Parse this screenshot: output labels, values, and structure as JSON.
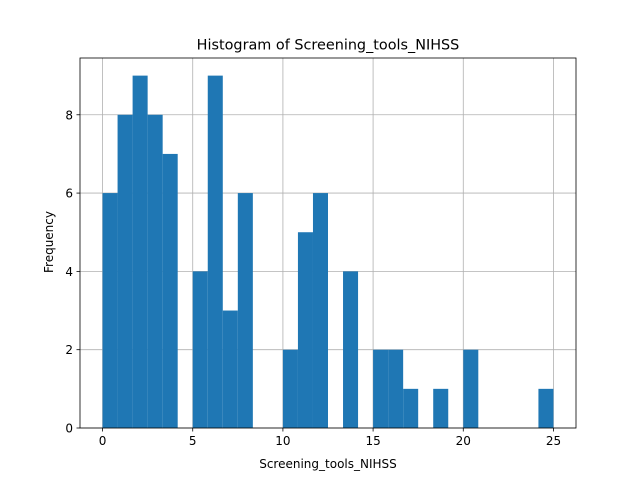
{
  "chart_data": {
    "type": "bar",
    "title": "Histogram of Screening_tools_NIHSS",
    "xlabel": "Screening_tools_NIHSS",
    "ylabel": "Frequency",
    "xlim": [
      -1.25,
      26.25
    ],
    "ylim": [
      0,
      9.45
    ],
    "bin_width": 0.8333,
    "bin_starts": [
      0.0,
      0.8333,
      1.6667,
      2.5,
      3.3333,
      4.1667,
      5.0,
      5.8333,
      6.6667,
      7.5,
      8.3333,
      9.1667,
      10.0,
      10.8333,
      11.6667,
      12.5,
      13.3333,
      14.1667,
      15.0,
      15.8333,
      16.6667,
      17.5,
      18.3333,
      19.1667,
      20.0,
      20.8333,
      21.6667,
      22.5,
      23.3333,
      24.1667
    ],
    "counts": [
      6,
      8,
      9,
      8,
      7,
      0,
      4,
      9,
      3,
      6,
      0,
      0,
      2,
      5,
      6,
      0,
      4,
      0,
      2,
      2,
      1,
      0,
      1,
      0,
      2,
      0,
      0,
      0,
      0,
      1
    ],
    "x_ticks": [
      0,
      5,
      10,
      15,
      20,
      25
    ],
    "x_tick_labels": [
      "0",
      "5",
      "10",
      "15",
      "20",
      "25"
    ],
    "y_ticks": [
      0,
      2,
      4,
      6,
      8
    ],
    "y_tick_labels": [
      "0",
      "2",
      "4",
      "6",
      "8"
    ],
    "grid": true,
    "bar_color": "#1f77b4"
  }
}
